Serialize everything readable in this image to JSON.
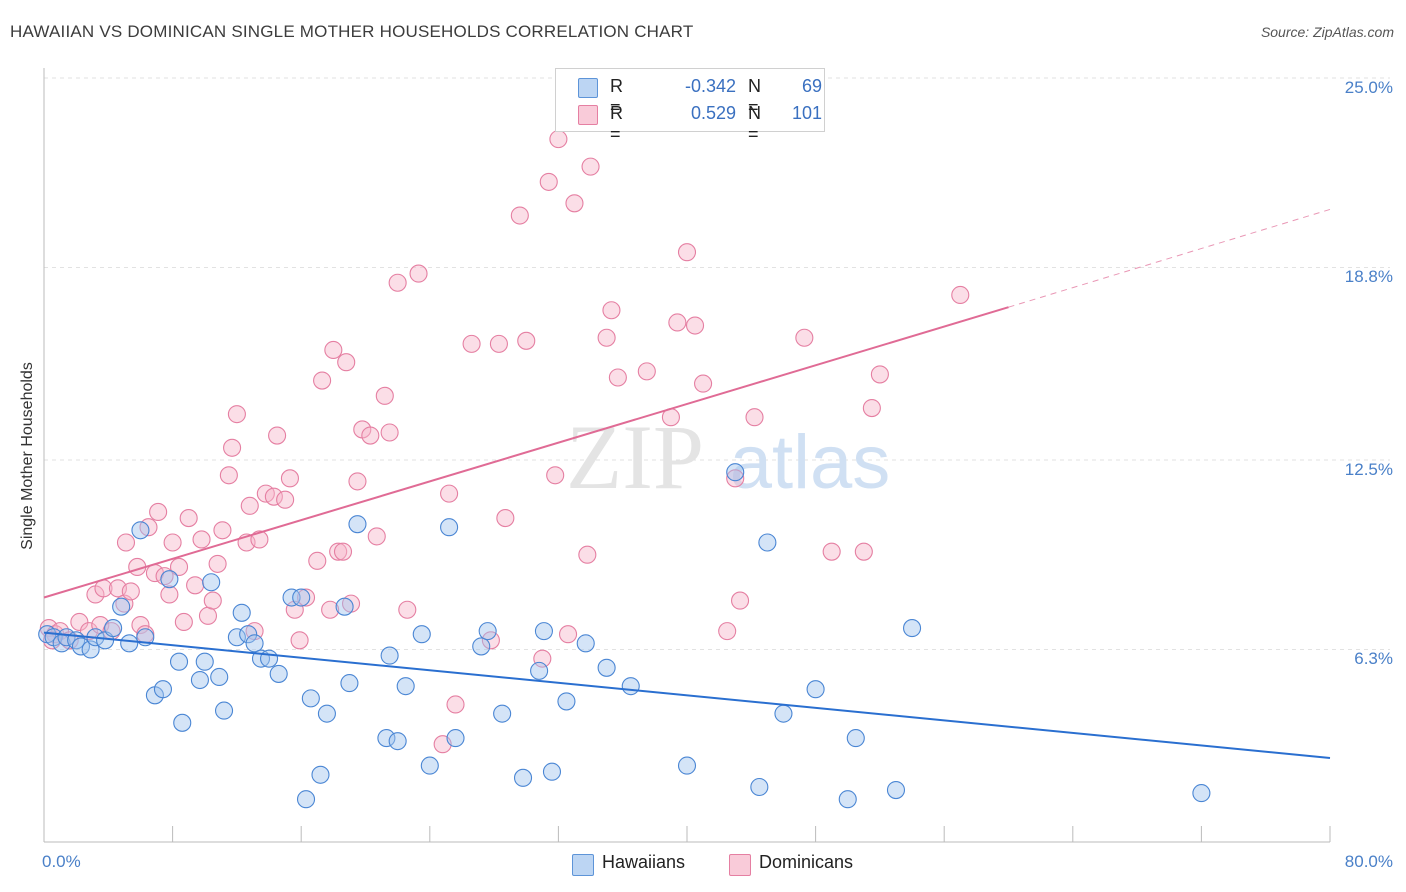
{
  "header": {
    "title": "HAWAIIAN VS DOMINICAN SINGLE MOTHER HOUSEHOLDS CORRELATION CHART",
    "source": "Source: ZipAtlas.com"
  },
  "watermark": {
    "part1": "ZIP",
    "part2": "atlas"
  },
  "legend": {
    "series": [
      {
        "r_label": "R =",
        "r_value": "-0.342",
        "n_label": "N =",
        "n_value": "69",
        "color": "#9fc3ee",
        "stroke": "#5d94d8"
      },
      {
        "r_label": "R =",
        "r_value": "0.529",
        "n_label": "N = ",
        "n_value": "101",
        "color": "#f6b6ca",
        "stroke": "#e57fa2"
      }
    ],
    "bottom": [
      "Hawaiians",
      "Dominicans"
    ]
  },
  "colors": {
    "hawaiian_fill": "#9fc3ee",
    "hawaiian_stroke": "#4a86d4",
    "hawaiian_line": "#2a6fd0",
    "dominican_fill": "#f6b6ca",
    "dominican_stroke": "#e57fa2",
    "dominican_line": "#e06b95",
    "tick_text": "#4a80c8",
    "grid": "#e2e2e2"
  },
  "chart_data": {
    "type": "scatter",
    "title": "HAWAIIAN VS DOMINICAN SINGLE MOTHER HOUSEHOLDS CORRELATION CHART",
    "xlabel": "",
    "ylabel": "Single Mother Households",
    "xlim": [
      0,
      80
    ],
    "ylim": [
      0,
      25
    ],
    "x_tick_labels": [
      "0.0%",
      "80.0%"
    ],
    "y_ticks": [
      6.3,
      12.5,
      18.8,
      25.0
    ],
    "y_tick_labels": [
      "6.3%",
      "12.5%",
      "18.8%",
      "25.0%"
    ],
    "grid": true,
    "legend_position": "top-center",
    "series": [
      {
        "name": "Hawaiians",
        "points": [
          [
            0.2,
            6.8
          ],
          [
            0.6,
            6.7
          ],
          [
            1.1,
            6.5
          ],
          [
            1.4,
            6.7
          ],
          [
            2.0,
            6.6
          ],
          [
            2.3,
            6.4
          ],
          [
            2.9,
            6.3
          ],
          [
            3.2,
            6.7
          ],
          [
            3.8,
            6.6
          ],
          [
            4.3,
            7.0
          ],
          [
            4.8,
            7.7
          ],
          [
            5.3,
            6.5
          ],
          [
            6.0,
            10.2
          ],
          [
            6.3,
            6.7
          ],
          [
            6.9,
            4.8
          ],
          [
            7.4,
            5.0
          ],
          [
            7.8,
            8.6
          ],
          [
            8.4,
            5.9
          ],
          [
            8.6,
            3.9
          ],
          [
            9.7,
            5.3
          ],
          [
            10.0,
            5.9
          ],
          [
            10.4,
            8.5
          ],
          [
            10.9,
            5.4
          ],
          [
            11.2,
            4.3
          ],
          [
            12.0,
            6.7
          ],
          [
            12.3,
            7.5
          ],
          [
            12.7,
            6.8
          ],
          [
            13.1,
            6.5
          ],
          [
            13.5,
            6.0
          ],
          [
            14.0,
            6.0
          ],
          [
            14.6,
            5.5
          ],
          [
            15.4,
            8.0
          ],
          [
            16.0,
            8.0
          ],
          [
            16.3,
            1.4
          ],
          [
            16.6,
            4.7
          ],
          [
            17.2,
            2.2
          ],
          [
            17.6,
            4.2
          ],
          [
            18.7,
            7.7
          ],
          [
            19.0,
            5.2
          ],
          [
            19.5,
            10.4
          ],
          [
            21.5,
            6.1
          ],
          [
            21.3,
            3.4
          ],
          [
            22.0,
            3.3
          ],
          [
            22.5,
            5.1
          ],
          [
            23.5,
            6.8
          ],
          [
            24.0,
            2.5
          ],
          [
            25.2,
            10.3
          ],
          [
            25.6,
            3.4
          ],
          [
            27.2,
            6.4
          ],
          [
            27.6,
            6.9
          ],
          [
            28.5,
            4.2
          ],
          [
            29.8,
            2.1
          ],
          [
            30.8,
            5.6
          ],
          [
            31.1,
            6.9
          ],
          [
            31.6,
            2.3
          ],
          [
            32.5,
            4.6
          ],
          [
            33.7,
            6.5
          ],
          [
            35.0,
            5.7
          ],
          [
            36.5,
            5.1
          ],
          [
            40.0,
            2.5
          ],
          [
            43.0,
            12.1
          ],
          [
            44.5,
            1.8
          ],
          [
            45.0,
            9.8
          ],
          [
            46.0,
            4.2
          ],
          [
            48.0,
            5.0
          ],
          [
            50.0,
            1.4
          ],
          [
            50.5,
            3.4
          ],
          [
            53.0,
            1.7
          ],
          [
            54.0,
            7.0
          ],
          [
            72.0,
            1.6
          ]
        ]
      },
      {
        "name": "Dominicans",
        "points": [
          [
            0.3,
            7.0
          ],
          [
            0.7,
            6.8
          ],
          [
            1.0,
            6.9
          ],
          [
            1.6,
            6.6
          ],
          [
            2.2,
            7.2
          ],
          [
            2.8,
            6.9
          ],
          [
            3.2,
            8.1
          ],
          [
            3.5,
            7.1
          ],
          [
            3.7,
            8.3
          ],
          [
            4.2,
            6.9
          ],
          [
            4.6,
            8.3
          ],
          [
            5.0,
            7.8
          ],
          [
            5.1,
            9.8
          ],
          [
            5.4,
            8.2
          ],
          [
            5.8,
            9.0
          ],
          [
            6.0,
            7.1
          ],
          [
            6.3,
            6.8
          ],
          [
            6.5,
            10.3
          ],
          [
            6.9,
            8.8
          ],
          [
            7.1,
            10.8
          ],
          [
            7.5,
            8.7
          ],
          [
            7.8,
            8.1
          ],
          [
            8.0,
            9.8
          ],
          [
            8.4,
            9.0
          ],
          [
            8.7,
            7.2
          ],
          [
            9.0,
            10.6
          ],
          [
            9.4,
            8.4
          ],
          [
            9.8,
            9.9
          ],
          [
            10.2,
            7.4
          ],
          [
            10.5,
            7.9
          ],
          [
            10.8,
            9.1
          ],
          [
            11.1,
            10.2
          ],
          [
            11.5,
            12.0
          ],
          [
            11.7,
            12.9
          ],
          [
            12.0,
            14.0
          ],
          [
            12.6,
            9.8
          ],
          [
            12.8,
            11.0
          ],
          [
            13.1,
            6.9
          ],
          [
            13.4,
            9.9
          ],
          [
            13.8,
            11.4
          ],
          [
            14.3,
            11.3
          ],
          [
            14.5,
            13.3
          ],
          [
            15.0,
            11.2
          ],
          [
            15.3,
            11.9
          ],
          [
            15.6,
            7.6
          ],
          [
            15.9,
            6.6
          ],
          [
            16.3,
            8.0
          ],
          [
            17.0,
            9.2
          ],
          [
            17.3,
            15.1
          ],
          [
            17.8,
            7.6
          ],
          [
            18.0,
            16.1
          ],
          [
            18.3,
            9.5
          ],
          [
            18.6,
            9.5
          ],
          [
            18.8,
            15.7
          ],
          [
            19.1,
            7.8
          ],
          [
            19.5,
            11.8
          ],
          [
            19.8,
            13.5
          ],
          [
            20.3,
            13.3
          ],
          [
            20.7,
            10.0
          ],
          [
            21.2,
            14.6
          ],
          [
            21.5,
            13.4
          ],
          [
            22.0,
            18.3
          ],
          [
            22.6,
            7.6
          ],
          [
            23.3,
            18.6
          ],
          [
            24.8,
            3.2
          ],
          [
            25.2,
            11.4
          ],
          [
            25.6,
            4.5
          ],
          [
            26.6,
            16.3
          ],
          [
            27.8,
            6.6
          ],
          [
            28.3,
            16.3
          ],
          [
            28.7,
            10.6
          ],
          [
            29.6,
            20.5
          ],
          [
            30.0,
            16.4
          ],
          [
            31.0,
            6.0
          ],
          [
            31.4,
            21.6
          ],
          [
            31.8,
            12.0
          ],
          [
            32.0,
            23.0
          ],
          [
            32.6,
            6.8
          ],
          [
            33.0,
            20.9
          ],
          [
            33.8,
            9.4
          ],
          [
            34.0,
            22.1
          ],
          [
            35.0,
            16.5
          ],
          [
            35.3,
            17.4
          ],
          [
            35.7,
            15.2
          ],
          [
            37.5,
            15.4
          ],
          [
            39.0,
            13.9
          ],
          [
            39.4,
            17.0
          ],
          [
            40.0,
            19.3
          ],
          [
            40.5,
            16.9
          ],
          [
            41.0,
            15.0
          ],
          [
            42.5,
            6.9
          ],
          [
            43.0,
            11.9
          ],
          [
            43.3,
            7.9
          ],
          [
            44.2,
            13.9
          ],
          [
            47.3,
            16.5
          ],
          [
            49.0,
            9.5
          ],
          [
            51.0,
            9.5
          ],
          [
            51.5,
            14.2
          ],
          [
            52.0,
            15.3
          ],
          [
            57.0,
            17.9
          ],
          [
            0.5,
            6.6
          ]
        ]
      }
    ],
    "trend_lines": [
      {
        "series": "Hawaiians",
        "x": [
          0,
          80
        ],
        "y": [
          6.85,
          2.75
        ]
      },
      {
        "series": "Dominicans",
        "x": [
          0,
          60
        ],
        "y": [
          8.0,
          17.5
        ],
        "dashed_to": [
          80,
          20.7
        ]
      }
    ]
  }
}
